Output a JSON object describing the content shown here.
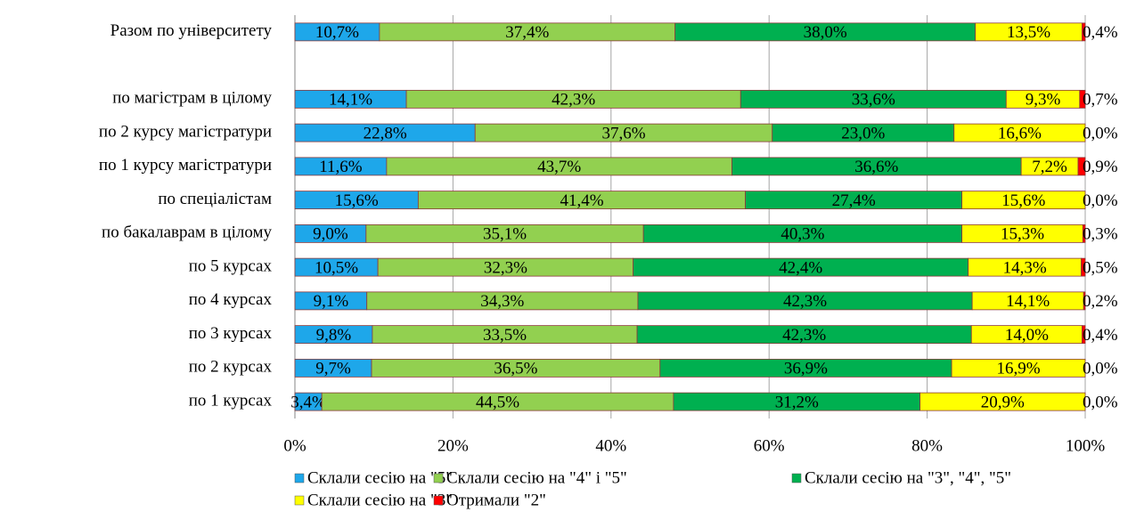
{
  "chart_data": {
    "type": "stacked_barh",
    "categories": [
      "Разом по університету",
      null,
      "по магістрам в цілому",
      "по 2 курсу магістратури",
      "по 1 курсу магістратури",
      "по спеціалістам",
      "по бакалаврам в цілому",
      "по 5 курсах",
      "по 4 курсах",
      "по 3 курсах",
      "по 2 курсах",
      "по 1 курсах"
    ],
    "series": [
      {
        "name": "Склали сесію на \"5\"",
        "color": "#1ea7ea",
        "values": [
          10.7,
          null,
          14.1,
          22.8,
          11.6,
          15.6,
          9.0,
          10.5,
          9.1,
          9.8,
          9.7,
          3.4
        ],
        "value_labels": [
          "10,7%",
          null,
          "14,1%",
          "22,8%",
          "11,6%",
          "15,6%",
          "9,0%",
          "10,5%",
          "9,1%",
          "9,8%",
          "9,7%",
          "3,4%"
        ]
      },
      {
        "name": "Склали сесію на \"4\" і \"5\"",
        "color": "#92d050",
        "values": [
          37.4,
          null,
          42.3,
          37.6,
          43.7,
          41.4,
          35.1,
          32.3,
          34.3,
          33.5,
          36.5,
          44.5
        ],
        "value_labels": [
          "37,4%",
          null,
          "42,3%",
          "37,6%",
          "43,7%",
          "41,4%",
          "35,1%",
          "32,3%",
          "34,3%",
          "33,5%",
          "36,5%",
          "44,5%"
        ]
      },
      {
        "name": "Склали сесію на \"3\", \"4\", \"5\"",
        "color": "#00b050",
        "values": [
          38.0,
          null,
          33.6,
          23.0,
          36.6,
          27.4,
          40.3,
          42.4,
          42.3,
          42.3,
          36.9,
          31.2
        ],
        "value_labels": [
          "38,0%",
          null,
          "33,6%",
          "23,0%",
          "36,6%",
          "27,4%",
          "40,3%",
          "42,4%",
          "42,3%",
          "42,3%",
          "36,9%",
          "31,2%"
        ]
      },
      {
        "name": "Склали сесію на \"3\"",
        "color": "#ffff00",
        "values": [
          13.5,
          null,
          9.3,
          16.6,
          7.2,
          15.6,
          15.3,
          14.3,
          14.1,
          14.0,
          16.9,
          20.9
        ],
        "value_labels": [
          "13,5%",
          null,
          "9,3%",
          "16,6%",
          "7,2%",
          "15,6%",
          "15,3%",
          "14,3%",
          "14,1%",
          "14,0%",
          "16,9%",
          "20,9%"
        ]
      },
      {
        "name": "Отримали \"2\"",
        "color": "#ff0000",
        "values": [
          0.4,
          null,
          0.7,
          0.0,
          0.9,
          0.0,
          0.3,
          0.5,
          0.2,
          0.4,
          0.0,
          0.0
        ],
        "value_labels": [
          "0,4%",
          null,
          "0,7%",
          "0,0%",
          "0,9%",
          "0,0%",
          "0,3%",
          "0,5%",
          "0,2%",
          "0,4%",
          "0,0%",
          "0,0%"
        ]
      }
    ],
    "xlim": [
      0,
      100
    ],
    "xticks": [
      {
        "value": 0,
        "label": "0%"
      },
      {
        "value": 20,
        "label": "20%"
      },
      {
        "value": 40,
        "label": "40%"
      },
      {
        "value": 60,
        "label": "60%"
      },
      {
        "value": 80,
        "label": "80%"
      },
      {
        "value": 100,
        "label": "100%"
      }
    ],
    "grid": true
  }
}
